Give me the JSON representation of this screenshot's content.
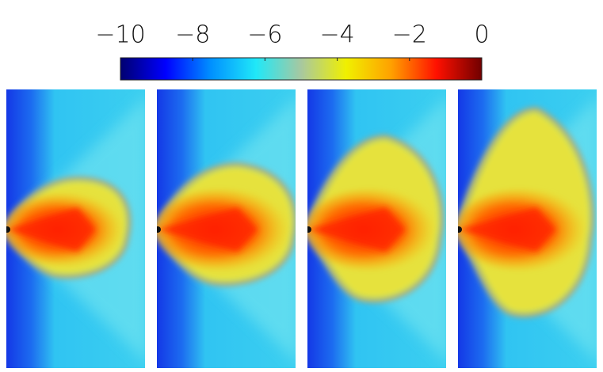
{
  "chart_data": {
    "type": "colormap",
    "clim": [
      -10,
      0
    ],
    "cticks": [
      {
        "value": -10,
        "label": "−10"
      },
      {
        "value": -8,
        "label": "−8"
      },
      {
        "value": -6,
        "label": "−6"
      },
      {
        "value": -4,
        "label": "−4"
      },
      {
        "value": -2,
        "label": "−2"
      },
      0
    ],
    "colormap": [
      "#000070",
      "#0000ff",
      "#0090ff",
      "#20e8f8",
      "#a8c8a0",
      "#f0f000",
      "#ffa000",
      "#ff1000",
      "#700000"
    ]
  }
}
